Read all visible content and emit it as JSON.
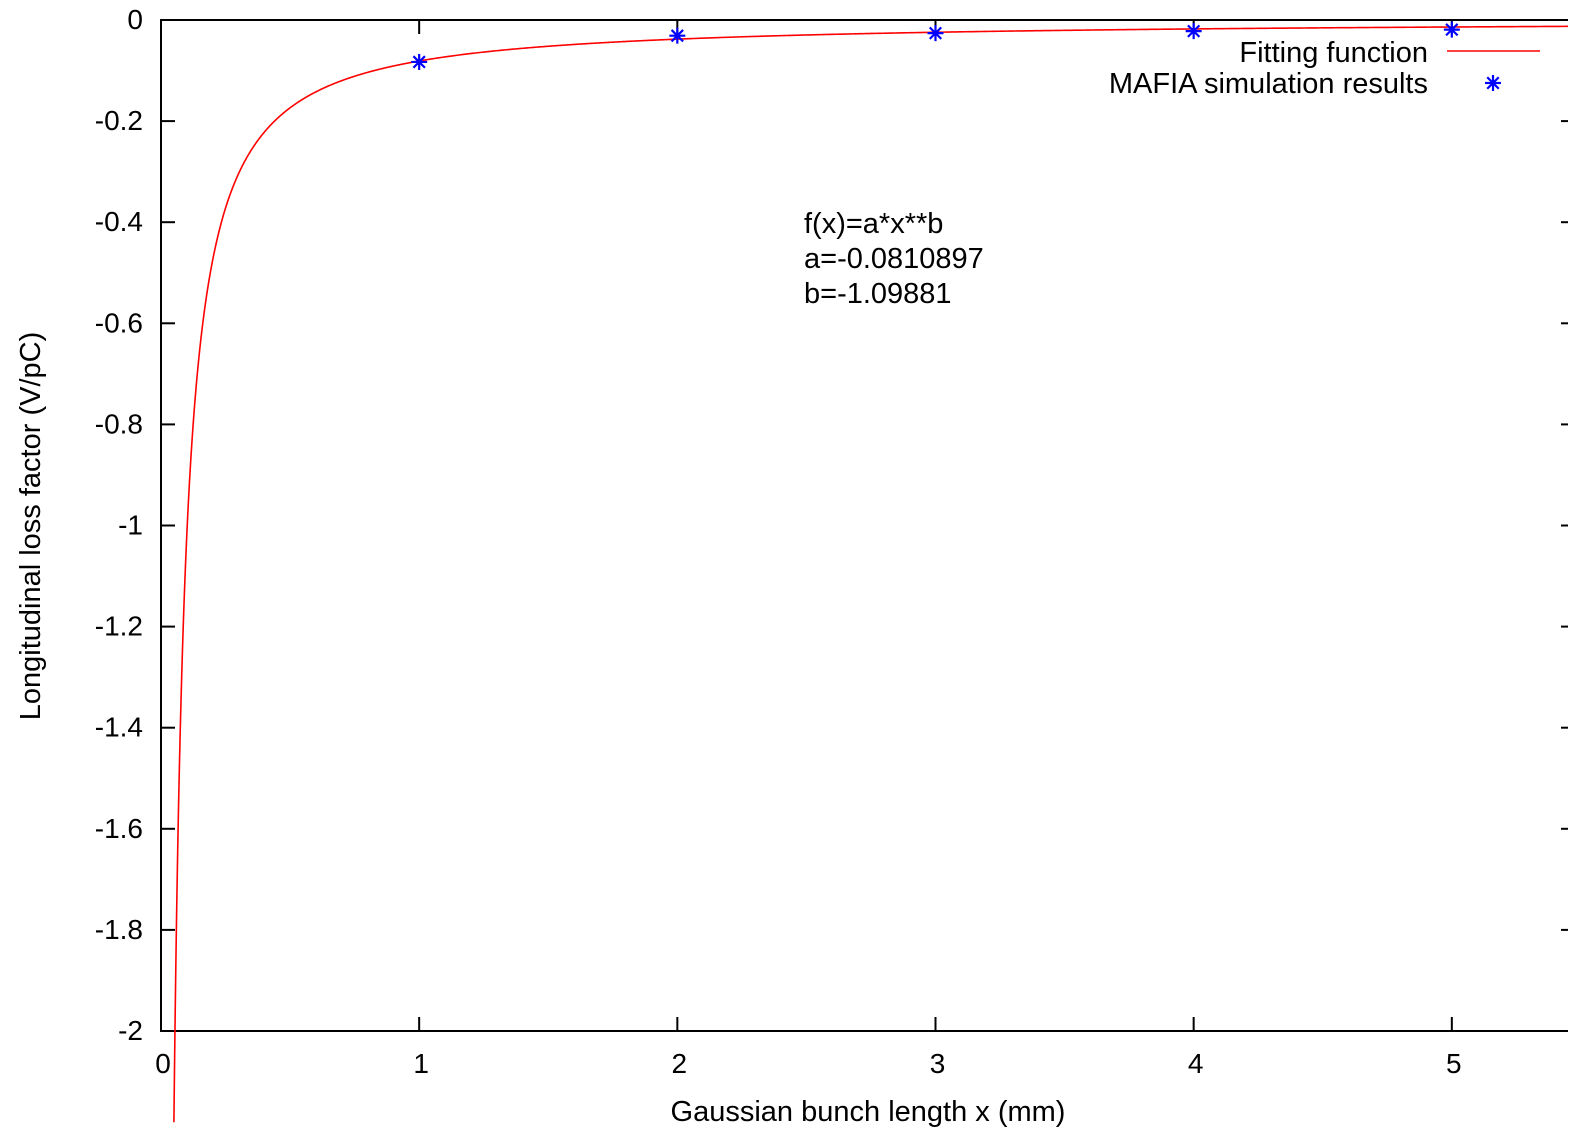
{
  "chart_data": {
    "type": "line",
    "xlabel": "Gaussian bunch length x (mm)",
    "ylabel": "Longitudinal loss factor (V/pC)",
    "xlim": [
      0,
      5.45
    ],
    "ylim": [
      -2,
      0
    ],
    "x_ticks": [
      0,
      1,
      2,
      3,
      4,
      5
    ],
    "y_ticks": [
      0,
      -0.2,
      -0.4,
      -0.6,
      -0.8,
      -1,
      -1.2,
      -1.4,
      -1.6,
      -1.8,
      -2
    ],
    "x_tick_labels": [
      "0",
      "1",
      "2",
      "3",
      "4",
      "5"
    ],
    "y_tick_labels": [
      "0",
      "-0.2",
      "-0.4",
      "-0.6",
      "-0.8",
      "-1",
      "-1.2",
      "-1.4",
      "-1.6",
      "-1.8",
      "-2"
    ],
    "grid": false,
    "legend_position": "top-right",
    "annotation": [
      "f(x)=a*x**b",
      "a=-0.0810897",
      "b=-1.09881"
    ],
    "series": [
      {
        "name": "Fitting function",
        "kind": "line",
        "color": "#ff0000",
        "function": {
          "a": -0.0810897,
          "b": -1.09881,
          "x_start": 0.05,
          "x_end": 5.45
        }
      },
      {
        "name": "MAFIA simulation results",
        "kind": "scatter",
        "color": "#0000ff",
        "marker": "asterisk",
        "x": [
          1,
          2,
          3,
          4,
          5
        ],
        "y": [
          -0.083,
          -0.031,
          -0.026,
          -0.022,
          -0.019
        ]
      }
    ]
  }
}
